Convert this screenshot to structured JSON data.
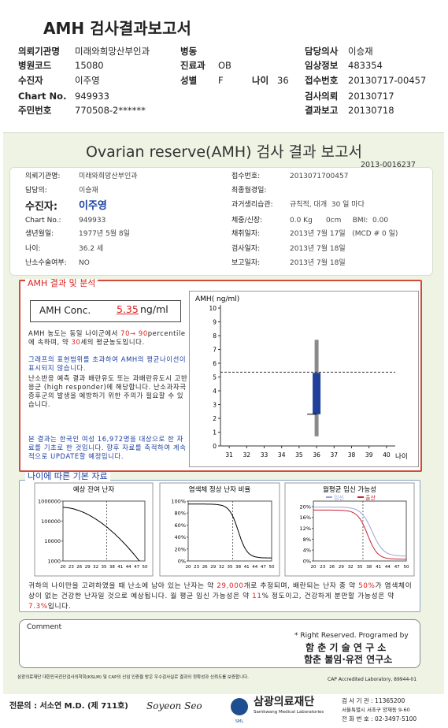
{
  "header": {
    "title": "AMH 검사결과보고서",
    "rows": [
      [
        {
          "label": "의뢰기관명",
          "value": "미래와희망산부인과"
        },
        {
          "label": "병동"
        },
        {
          "label": "담당의사",
          "value": "이승재"
        }
      ],
      [
        {
          "label": "병원코드",
          "value": "15080"
        },
        {
          "label": "진료과",
          "value": "OB"
        },
        {
          "label": "임상정보",
          "value": "483354"
        }
      ],
      [
        {
          "label": "수진자",
          "value": "이주영"
        },
        {
          "label": "성별",
          "value": "F"
        },
        {
          "label": "나이",
          "value": "36"
        },
        {
          "label": "접수번호",
          "value": "20130717-00457"
        }
      ],
      [
        {
          "label": "Chart No.",
          "value": "949933"
        },
        {
          "label": "검사의뢰",
          "value": "20130717"
        }
      ],
      [
        {
          "label": "주민번호",
          "value": "770508-2******"
        },
        {
          "label": "결과보고",
          "value": "20130718"
        }
      ]
    ]
  },
  "report": {
    "title": "Ovarian reserve(AMH) 검사 결과 보고서",
    "id": "2013-0016237",
    "left": [
      {
        "label": "의뢰기관명:",
        "value": "미래와희망산부인과"
      },
      {
        "label": "담당의:",
        "value": "이승재"
      },
      {
        "label": "수진자:",
        "value": "이주영"
      },
      {
        "label": "Chart No.:",
        "value": "949933"
      },
      {
        "label": "생년월일:",
        "value": "1977년 5월 8일"
      },
      {
        "label": "나이:",
        "value": "36.2 세"
      },
      {
        "label": "난소수술여부:",
        "value": "NO"
      }
    ],
    "right": [
      {
        "label": "접수번호:",
        "value": "2013071700457"
      },
      {
        "label": "최종월경일:"
      },
      {
        "label": "과거생리습관:",
        "value": "규칙적, 대개  30 일 마다"
      },
      {
        "label": "체중/신장:",
        "value": "0.0 Kg      0cm     BMI:  0.00"
      },
      {
        "label": "채취일자:",
        "value": "2013년 7월 17일   (MCD # 0 일)"
      },
      {
        "label": "검사일자:",
        "value": "2013년 7월 18일"
      },
      {
        "label": "보고일자:",
        "value": "2013년 7월 18일"
      }
    ]
  },
  "analysis": {
    "title": "AMH 결과 및 분석",
    "conc_label": "AMH Conc.",
    "conc_value": "5.35",
    "conc_unit": "ng/ml",
    "p1": [
      "AMH 농도는 동일 나이군에서 ",
      "70→ 90",
      "percentile에 속하며, 약 ",
      "30",
      "세의 평균농도입니다."
    ],
    "p2": "그래프의 표현범위를 초과하여 AMH의 평균나이선이 표시되지 않습니다.",
    "p3": "난소반응 예측 결과 배란유도 또는 과배란유도시 고반응군 (high responder)에 해당합니다. 난소과자극 증후군의 발생을 예방하기 위한 주의가 필요할 수 있습니다.",
    "p4": "본 결과는 한국인 여성 16,972명을 대상으로 한 자료를 기초로 한 것입니다. 향후 자료를 축적하여 계속적으로 UPDATE할 예정입니다.",
    "chart": {
      "type": "box",
      "title": "AMH( ng/ml)",
      "xlabel": "나이",
      "xlim": [
        30.5,
        40.5
      ],
      "xticks": [
        31,
        32,
        33,
        34,
        35,
        36,
        37,
        38,
        39,
        40
      ],
      "ylim": [
        0,
        10
      ],
      "yticks": [
        0,
        1,
        2,
        3,
        4,
        5,
        6,
        7,
        8,
        9,
        10
      ],
      "box": {
        "x": 36,
        "min": 0.7,
        "q1": 2.3,
        "q3": 5.3,
        "max": 7.7
      },
      "value": 5.35,
      "color": "#1f3f9a"
    }
  },
  "basics": {
    "title": "나이에 따른 기본 자료",
    "charts": [
      {
        "type": "line",
        "title": "예상 잔여 난자",
        "log": true,
        "ylim": [
          1000,
          1000000
        ],
        "yticks": [
          1000000,
          100000,
          10000,
          1000
        ],
        "xlim": [
          20,
          50
        ],
        "xticks": [
          20,
          23,
          26,
          29,
          32,
          35,
          38,
          41,
          44,
          47,
          50
        ]
      },
      {
        "type": "line",
        "title": "염색체 정상 난자 비율",
        "ylim": [
          0,
          100
        ],
        "yticks": [
          {
            "value": 100,
            "label": "100%"
          },
          {
            "value": 80,
            "label": "80%"
          },
          {
            "value": 60,
            "label": "60%"
          },
          {
            "value": 40,
            "label": "40%"
          },
          {
            "value": 20,
            "label": "20%"
          },
          {
            "value": 0,
            "label": "0%"
          }
        ],
        "xlim": [
          20,
          50
        ],
        "xticks": [
          20,
          23,
          26,
          29,
          32,
          35,
          38,
          41,
          44,
          47,
          50
        ]
      },
      {
        "type": "line",
        "title": "월평균 임신 가능성",
        "legend": [
          "임신",
          "출산"
        ],
        "ylim": [
          0,
          22
        ],
        "yticks": [
          {
            "value": 20,
            "label": "20%"
          },
          {
            "value": 16,
            "label": "16%"
          },
          {
            "value": 12,
            "label": "12%"
          },
          {
            "value": 8,
            "label": "8%"
          },
          {
            "value": 4,
            "label": "4%"
          },
          {
            "value": 0,
            "label": "0%"
          }
        ],
        "xlim": [
          20,
          50
        ],
        "xticks": [
          20,
          23,
          26,
          29,
          32,
          35,
          38,
          41,
          44,
          47,
          50
        ]
      }
    ],
    "summary": [
      "귀하의 나이만을 고려하였을 때 난소에 남아 있는 난자는 약 ",
      "29,000",
      "개로 추정되며, 배란되는 난자 중 약 ",
      "50%",
      "가 염색체이상이 없는 건강한 난자일 것으로 예상됩니다. 월 평균 임신 가능성은 약 ",
      "11",
      "% 정도이고, 건강하게 분만할 가능성은 약 ",
      "7.3%",
      "입니다."
    ]
  },
  "comment": {
    "label": "Comment"
  },
  "credit": {
    "line1": "* Right Reserved. Programed by",
    "line2": "함 춘 기 술 연 구 소",
    "line3": "함춘 불임·유전 연구소"
  },
  "note": {
    "left": "삼광의료재단 대한민국진단검사의학회(KSLM) 및 CAP의 신임 인증을 받은 우수검사실로 결과의 정확성과 신뢰도를 보증합니다.",
    "right": "CAP Accredited Laboratory, 89944-01"
  },
  "footer": {
    "doctor": "전문의 : 서소연 M.D. (제 711호)",
    "signature": "Soyeon Seo",
    "logo_mark": "SML",
    "org": "삼광의료재단",
    "org_en": "Samkwang Medical Laboratories",
    "lab": "검 사 기 관 : 11365200",
    "address": "서울특별시 서초구 양재동 9-60",
    "phone": "전 화 번 호 : 02-3497-5100"
  }
}
